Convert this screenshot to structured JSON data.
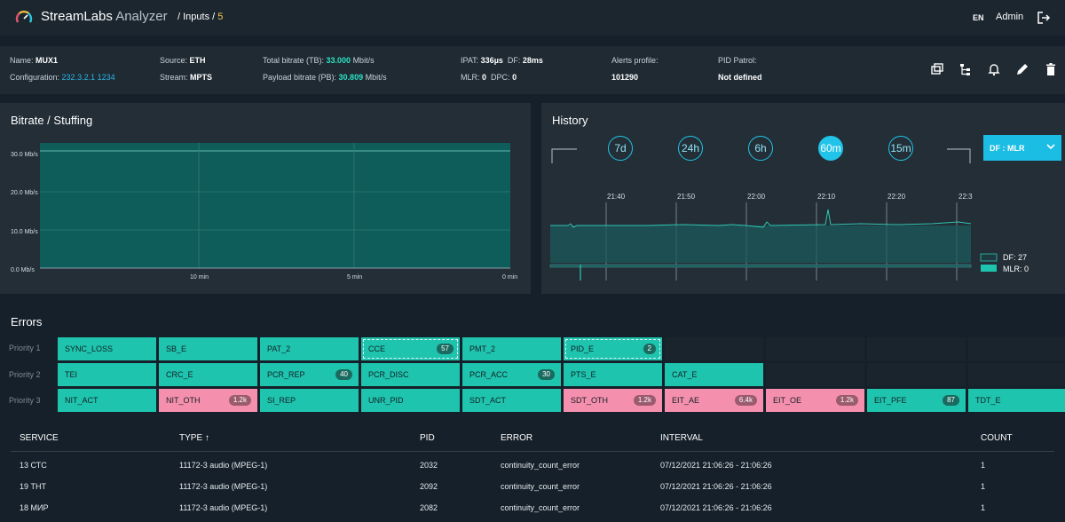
{
  "app": {
    "brand_main": "StreamLabs",
    "brand_sub": " Analyzer",
    "breadcrumb_prefix": "/ Inputs / ",
    "breadcrumb_num": "5",
    "lang": "EN",
    "user": "Admin"
  },
  "info": {
    "name_label": "Name: ",
    "name": "MUX1",
    "config_label": "Configuration: ",
    "config_addr": "232.3.2.1",
    "config_port": "1234",
    "source_label": "Source: ",
    "source": "ETH",
    "stream_label": "Stream: ",
    "stream": "MPTS",
    "tb_label": "Total bitrate (TB): ",
    "tb_value": "33.000",
    "tb_unit": " Mbit/s",
    "pb_label": "Payload bitrate (PB): ",
    "pb_value": "30.809",
    "pb_unit": " Mbit/s",
    "ipat_label": "IPAT: ",
    "ipat": "336µs",
    "df_label": "DF: ",
    "df": "28ms",
    "mlr_label": "MLR: ",
    "mlr": "0",
    "dpc_label": "DPC: ",
    "dpc": "0",
    "alerts_label": "Alerts profile:",
    "alerts": "101290",
    "patrol_label": "PID Patrol:",
    "patrol": "Not defined"
  },
  "bitrate": {
    "title": "Bitrate / Stuffing",
    "y_ticks": [
      "30.0 Mb/s",
      "20.0 Mb/s",
      "10.0 Mb/s",
      "0.0 Mb/s"
    ],
    "x_ticks": [
      "10 min",
      "5 min",
      "0 min"
    ]
  },
  "history": {
    "title": "History",
    "buttons": [
      "7d",
      "24h",
      "6h",
      "60m",
      "15m"
    ],
    "active": "60m",
    "select": "DF : MLR",
    "times": [
      "21:40",
      "21:50",
      "22:00",
      "22:10",
      "22:20",
      "22:3"
    ],
    "legend_df": "DF: 27",
    "legend_mlr": "MLR: 0"
  },
  "chart_data": [
    {
      "type": "area",
      "title": "Bitrate / Stuffing",
      "x": [
        "10 min",
        "5 min",
        "0 min"
      ],
      "series": [
        {
          "values": [
            33,
            33,
            33
          ]
        }
      ],
      "ylim": [
        0,
        33
      ],
      "grid": true
    },
    {
      "type": "area",
      "title": "History",
      "x": [
        "21:40",
        "21:50",
        "22:00",
        "22:10",
        "22:20",
        "22:3"
      ],
      "series": [
        {
          "name": "DF: 27",
          "values": [
            27,
            27,
            27,
            27,
            27,
            27
          ]
        },
        {
          "name": "MLR: 0",
          "values": [
            0,
            0,
            0,
            0,
            0,
            0
          ]
        }
      ],
      "grid": true
    }
  ],
  "errors": {
    "title": "Errors",
    "priorities": [
      "Priority 1",
      "Priority 2",
      "Priority 3"
    ],
    "rows": [
      [
        {
          "label": "SYNC_LOSS",
          "color": "teal",
          "badge": ""
        },
        {
          "label": "SB_E",
          "color": "teal",
          "badge": ""
        },
        {
          "label": "PAT_2",
          "color": "teal",
          "badge": ""
        },
        {
          "label": "CCE",
          "color": "dashed",
          "badge": "57"
        },
        {
          "label": "PMT_2",
          "color": "teal",
          "badge": ""
        },
        {
          "label": "PID_E",
          "color": "dashed",
          "badge": "2"
        },
        {
          "label": "",
          "color": "empty",
          "badge": ""
        },
        {
          "label": "",
          "color": "empty",
          "badge": ""
        },
        {
          "label": "",
          "color": "empty",
          "badge": ""
        },
        {
          "label": "",
          "color": "empty",
          "badge": ""
        }
      ],
      [
        {
          "label": "TEI",
          "color": "teal",
          "badge": ""
        },
        {
          "label": "CRC_E",
          "color": "teal",
          "badge": ""
        },
        {
          "label": "PCR_REP",
          "color": "teal",
          "badge": "40"
        },
        {
          "label": "PCR_DISC",
          "color": "teal",
          "badge": ""
        },
        {
          "label": "PCR_ACC",
          "color": "teal",
          "badge": "30"
        },
        {
          "label": "PTS_E",
          "color": "teal",
          "badge": ""
        },
        {
          "label": "CAT_E",
          "color": "teal",
          "badge": ""
        },
        {
          "label": "",
          "color": "empty",
          "badge": ""
        },
        {
          "label": "",
          "color": "empty",
          "badge": ""
        },
        {
          "label": "",
          "color": "empty",
          "badge": ""
        }
      ],
      [
        {
          "label": "NIT_ACT",
          "color": "teal",
          "badge": ""
        },
        {
          "label": "NIT_OTH",
          "color": "pink",
          "badge": "1.2k"
        },
        {
          "label": "SI_REP",
          "color": "teal",
          "badge": ""
        },
        {
          "label": "UNR_PID",
          "color": "teal",
          "badge": ""
        },
        {
          "label": "SDT_ACT",
          "color": "teal",
          "badge": ""
        },
        {
          "label": "SDT_OTH",
          "color": "pink",
          "badge": "1.2k"
        },
        {
          "label": "EIT_AE",
          "color": "pink",
          "badge": "6.4k"
        },
        {
          "label": "EIT_OE",
          "color": "pink",
          "badge": "1.2k"
        },
        {
          "label": "EIT_PFE",
          "color": "teal",
          "badge": "87"
        },
        {
          "label": "TDT_E",
          "color": "teal",
          "badge": ""
        }
      ]
    ]
  },
  "table": {
    "columns": [
      "SERVICE",
      "TYPE",
      "PID",
      "ERROR",
      "INTERVAL",
      "COUNT"
    ],
    "sort_indicator": "↑",
    "rows": [
      [
        "13 СТС",
        "11172-3 audio (MPEG-1)",
        "2032",
        "continuity_count_error",
        "07/12/2021 21:06:26 - 21:06:26",
        "1"
      ],
      [
        "19 ТНТ",
        "11172-3 audio (MPEG-1)",
        "2092",
        "continuity_count_error",
        "07/12/2021 21:06:26 - 21:06:26",
        "1"
      ],
      [
        "18 МИР",
        "11172-3 audio (MPEG-1)",
        "2082",
        "continuity_count_error",
        "07/12/2021 21:06:26 - 21:06:26",
        "1"
      ]
    ]
  },
  "colors": {
    "teal": "#1ec4ad",
    "pink": "#f58fae",
    "accent_blue": "#21c4e8",
    "bitrate_fill": "#0f5d5a"
  }
}
